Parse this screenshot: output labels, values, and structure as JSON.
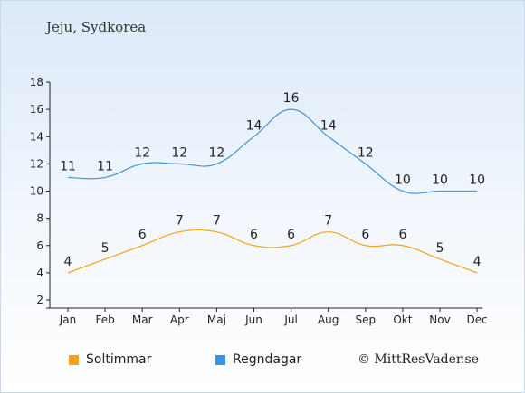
{
  "title": "Jeju, Sydkorea",
  "copyright": "© MittResVader.se",
  "chart_data": {
    "type": "line",
    "categories": [
      "Jan",
      "Feb",
      "Mar",
      "Apr",
      "Maj",
      "Jun",
      "Jul",
      "Aug",
      "Sep",
      "Okt",
      "Nov",
      "Dec"
    ],
    "series": [
      {
        "name": "Soltimmar",
        "color": "#f5a31a",
        "values": [
          4,
          5,
          6,
          7,
          7,
          6,
          6,
          7,
          6,
          6,
          5,
          4
        ]
      },
      {
        "name": "Regndagar",
        "color": "#3a95e0",
        "values": [
          11,
          11,
          12,
          12,
          12,
          14,
          16,
          14,
          12,
          10,
          10,
          10
        ]
      }
    ],
    "ylim": [
      2,
      18
    ],
    "yticks": [
      2,
      4,
      6,
      8,
      10,
      12,
      14,
      16,
      18
    ],
    "grid": false,
    "legend": "bottom"
  }
}
